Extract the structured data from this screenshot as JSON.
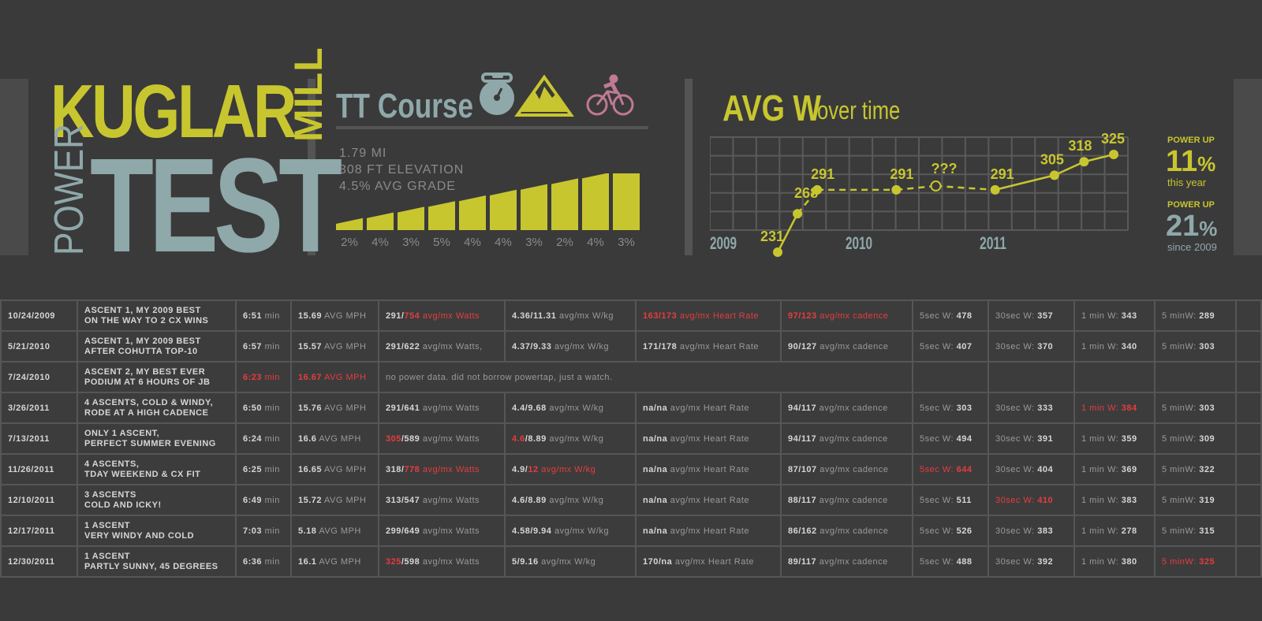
{
  "logo": {
    "line1": "KUGLAR",
    "line1b": "MILL",
    "line2a": "POWER",
    "line2b": "TEST"
  },
  "course": {
    "title": "TT Course",
    "icons": [
      "stopwatch-icon",
      "mountain-icon",
      "cyclist-icon"
    ],
    "stats": [
      "1.79 MI",
      "308 FT ELEVATION",
      "4.5% AVG GRADE"
    ],
    "grades": [
      "2%",
      "4%",
      "3%",
      "5%",
      "4%",
      "4%",
      "3%",
      "2%",
      "4%",
      "3%"
    ]
  },
  "chart_data": {
    "type": "line",
    "title": "AVG W",
    "subtitle": "over time",
    "x_ticks": [
      "2009",
      "2010",
      "2011"
    ],
    "points": [
      {
        "label": "231",
        "value": 231,
        "period": 0.0
      },
      {
        "label": "268",
        "value": 268,
        "period": 1.0
      },
      {
        "label": "291",
        "value": 291,
        "period": 2.0
      },
      {
        "label": "291",
        "value": 291,
        "period": 6.0
      },
      {
        "label": "???",
        "value": null,
        "period": 8.0
      },
      {
        "label": "291",
        "value": 291,
        "period": 11.0
      },
      {
        "label": "305",
        "value": 305,
        "period": 14.0
      },
      {
        "label": "318",
        "value": 318,
        "period": 15.5
      },
      {
        "label": "325",
        "value": 325,
        "period": 17.0
      }
    ],
    "grid": true
  },
  "powerup": [
    {
      "label": "POWER UP",
      "value": "11",
      "unit": "%",
      "sub": "this year",
      "color": "#c8c62e"
    },
    {
      "label": "POWER UP",
      "value": "21",
      "unit": "%",
      "sub": "since 2009",
      "color": "#8fa8aa"
    }
  ],
  "rows": [
    {
      "date": "10/24/2009",
      "desc1": "ASCENT 1, MY 2009 BEST",
      "desc2": "ON THE WAY TO 2 CX WINS",
      "time": "6:51",
      "time_u": " min",
      "time_red": false,
      "mph": "15.69",
      "mph_u": " AVG MPH",
      "mph_red": false,
      "watts_a": "291",
      "watts_b": "754",
      "watts_u": " avg/mx Watts",
      "watts_red": "b",
      "wkg_a": "4.36",
      "wkg_b": "11.31",
      "wkg_u": " avg/mx W/kg",
      "wkg_red": "",
      "hr_a": "163",
      "hr_b": "173",
      "hr_u": " avg/mx Heart Rate",
      "hr_red": "all",
      "cad_a": "97",
      "cad_b": "123",
      "cad_u": " avg/mx cadence",
      "cad_red": "all",
      "s5_l": "5sec W: ",
      "s5": "478",
      "s5_red": false,
      "s30_l": "30sec W: ",
      "s30": "357",
      "s30_red": false,
      "m1_l": "1 min W: ",
      "m1": "343",
      "m1_red": false,
      "m5_l": "5 minW: ",
      "m5": "289",
      "m5_red": false
    },
    {
      "date": "5/21/2010",
      "desc1": "ASCENT 1, MY 2009 BEST",
      "desc2": "AFTER COHUTTA TOP-10",
      "time": "6:57",
      "time_u": " min",
      "time_red": false,
      "mph": "15.57",
      "mph_u": " AVG MPH",
      "mph_red": false,
      "watts_a": "291",
      "watts_b": "622",
      "watts_u": " avg/mx Watts,",
      "watts_red": "",
      "wkg_a": "4.37",
      "wkg_b": "9.33",
      "wkg_u": " avg/mx W/kg",
      "wkg_red": "",
      "hr_a": "171",
      "hr_b": "178",
      "hr_u": " avg/mx Heart Rate",
      "hr_red": "",
      "cad_a": "90",
      "cad_b": "127",
      "cad_u": " avg/mx cadence",
      "cad_red": "",
      "s5_l": "5sec W: ",
      "s5": "407",
      "s5_red": false,
      "s30_l": "30sec W: ",
      "s30": "370",
      "s30_red": false,
      "m1_l": "1 min W: ",
      "m1": "340",
      "m1_red": false,
      "m5_l": "5 minW: ",
      "m5": "303",
      "m5_red": false
    },
    {
      "date": "7/24/2010",
      "desc1": "ASCENT 2, MY BEST EVER",
      "desc2": "PODIUM AT 6 HOURS OF JB",
      "time": "6:23",
      "time_u": " min",
      "time_red": true,
      "mph": "16.67",
      "mph_u": " AVG MPH",
      "mph_red": true,
      "note": "no power data. did not borrow powertap, just a watch."
    },
    {
      "date": "3/26/2011",
      "desc1": "4 ASCENTS, COLD & WINDY,",
      "desc2": "RODE AT A HIGH CADENCE",
      "time": "6:50",
      "time_u": " min",
      "time_red": false,
      "mph": "15.76",
      "mph_u": " AVG MPH",
      "mph_red": false,
      "watts_a": "291",
      "watts_b": "641",
      "watts_u": " avg/mx Watts",
      "watts_red": "",
      "wkg_a": "4.4",
      "wkg_b": "9.68",
      "wkg_u": " avg/mx W/kg",
      "wkg_red": "",
      "hr_a": "na",
      "hr_b": "na",
      "hr_u": " avg/mx Heart Rate",
      "hr_red": "",
      "cad_a": "94",
      "cad_b": "117",
      "cad_u": " avg/mx cadence",
      "cad_red": "",
      "s5_l": "5sec W: ",
      "s5": "303",
      "s5_red": false,
      "s30_l": "30sec W: ",
      "s30": "333",
      "s30_red": false,
      "m1_l": "1 min W: ",
      "m1": "384",
      "m1_red": true,
      "m5_l": "5 minW: ",
      "m5": "303",
      "m5_red": false
    },
    {
      "date": "7/13/2011",
      "desc1": "ONLY 1 ASCENT,",
      "desc2": "PERFECT SUMMER EVENING",
      "time": "6:24",
      "time_u": " min",
      "time_red": false,
      "mph": "16.6",
      "mph_u": " AVG MPH",
      "mph_red": false,
      "watts_a": "305",
      "watts_b": "589",
      "watts_u": " avg/mx Watts",
      "watts_red": "a",
      "wkg_a": "4.6",
      "wkg_b": "8.89",
      "wkg_u": " avg/mx W/kg",
      "wkg_red": "a",
      "hr_a": "na",
      "hr_b": "na",
      "hr_u": " avg/mx Heart Rate",
      "hr_red": "",
      "cad_a": "94",
      "cad_b": "117",
      "cad_u": " avg/mx cadence",
      "cad_red": "",
      "s5_l": "5sec W: ",
      "s5": "494",
      "s5_red": false,
      "s30_l": "30sec W: ",
      "s30": "391",
      "s30_red": false,
      "m1_l": "1 min W: ",
      "m1": "359",
      "m1_red": false,
      "m5_l": "5 minW: ",
      "m5": "309",
      "m5_red": false
    },
    {
      "date": "11/26/2011",
      "desc1": "4 ASCENTS,",
      "desc2": "TDAY WEEKEND & CX FIT",
      "time": "6:25",
      "time_u": " min",
      "time_red": false,
      "mph": "16.65",
      "mph_u": " AVG MPH",
      "mph_red": false,
      "watts_a": "318",
      "watts_b": "778",
      "watts_u": " avg/mx Watts",
      "watts_red": "b",
      "wkg_a": "4.9",
      "wkg_b": "12",
      "wkg_u": " avg/mx W/kg",
      "wkg_red": "b",
      "hr_a": "na",
      "hr_b": "na",
      "hr_u": " avg/mx Heart Rate",
      "hr_red": "",
      "cad_a": "87",
      "cad_b": "107",
      "cad_u": " avg/mx cadence",
      "cad_red": "",
      "s5_l": "5sec W: ",
      "s5": "644",
      "s5_red": true,
      "s30_l": "30sec W: ",
      "s30": "404",
      "s30_red": false,
      "m1_l": "1 min W: ",
      "m1": "369",
      "m1_red": false,
      "m5_l": "5 minW: ",
      "m5": "322",
      "m5_red": false
    },
    {
      "date": "12/10/2011",
      "desc1": "3 ASCENTS",
      "desc2": "COLD AND ICKY!",
      "time": "6:49",
      "time_u": " min",
      "time_red": false,
      "mph": "15.72",
      "mph_u": " AVG MPH",
      "mph_red": false,
      "watts_a": "313",
      "watts_b": "547",
      "watts_u": " avg/mx Watts",
      "watts_red": "",
      "wkg_a": "4.6",
      "wkg_b": "8.89",
      "wkg_u": " avg/mx W/kg",
      "wkg_red": "",
      "hr_a": "na",
      "hr_b": "na",
      "hr_u": " avg/mx Heart Rate",
      "hr_red": "",
      "cad_a": "88",
      "cad_b": "117",
      "cad_u": " avg/mx cadence",
      "cad_red": "",
      "s5_l": "5sec W: ",
      "s5": "511",
      "s5_red": false,
      "s30_l": "30sec W: ",
      "s30": "410",
      "s30_red": true,
      "m1_l": "1 min W: ",
      "m1": "383",
      "m1_red": false,
      "m5_l": "5 minW: ",
      "m5": "319",
      "m5_red": false
    },
    {
      "date": "12/17/2011",
      "desc1": "1 ASCENT",
      "desc2": "VERY WINDY AND COLD",
      "time": "7:03",
      "time_u": " min",
      "time_red": false,
      "mph": "5.18",
      "mph_u": " AVG MPH",
      "mph_red": false,
      "watts_a": "299",
      "watts_b": "649",
      "watts_u": " avg/mx Watts",
      "watts_red": "",
      "wkg_a": "4.58",
      "wkg_b": "9.94",
      "wkg_u": " avg/mx W/kg",
      "wkg_red": "",
      "hr_a": "na",
      "hr_b": "na",
      "hr_u": " avg/mx Heart Rate",
      "hr_red": "",
      "cad_a": "86",
      "cad_b": "162",
      "cad_u": " avg/mx cadence",
      "cad_red": "",
      "s5_l": "5sec W: ",
      "s5": "526",
      "s5_red": false,
      "s30_l": "30sec W: ",
      "s30": "383",
      "s30_red": false,
      "m1_l": "1 min W: ",
      "m1": "278",
      "m1_red": false,
      "m5_l": "5 minW: ",
      "m5": "315",
      "m5_red": false
    },
    {
      "date": "12/30/2011",
      "desc1": "1 ASCENT",
      "desc2": "PARTLY SUNNY, 45 DEGREES",
      "time": "6:36",
      "time_u": " min",
      "time_red": false,
      "mph": "16.1",
      "mph_u": " AVG MPH",
      "mph_red": false,
      "watts_a": "325",
      "watts_b": "598",
      "watts_u": " avg/mx Watts",
      "watts_red": "a",
      "wkg_a": "5",
      "wkg_b": "9.16",
      "wkg_u": " avg/mx W/kg",
      "wkg_red": "",
      "hr_a": "170",
      "hr_b": "na",
      "hr_u": " avg/mx Heart Rate",
      "hr_red": "",
      "cad_a": "89",
      "cad_b": "117",
      "cad_u": " avg/mx cadence",
      "cad_red": "",
      "s5_l": "5sec W: ",
      "s5": "488",
      "s5_red": false,
      "s30_l": "30sec W: ",
      "s30": "392",
      "s30_red": false,
      "m1_l": "1 min W: ",
      "m1": "380",
      "m1_red": false,
      "m5_l": "5 minW: ",
      "m5": "325",
      "m5_red": true
    }
  ]
}
